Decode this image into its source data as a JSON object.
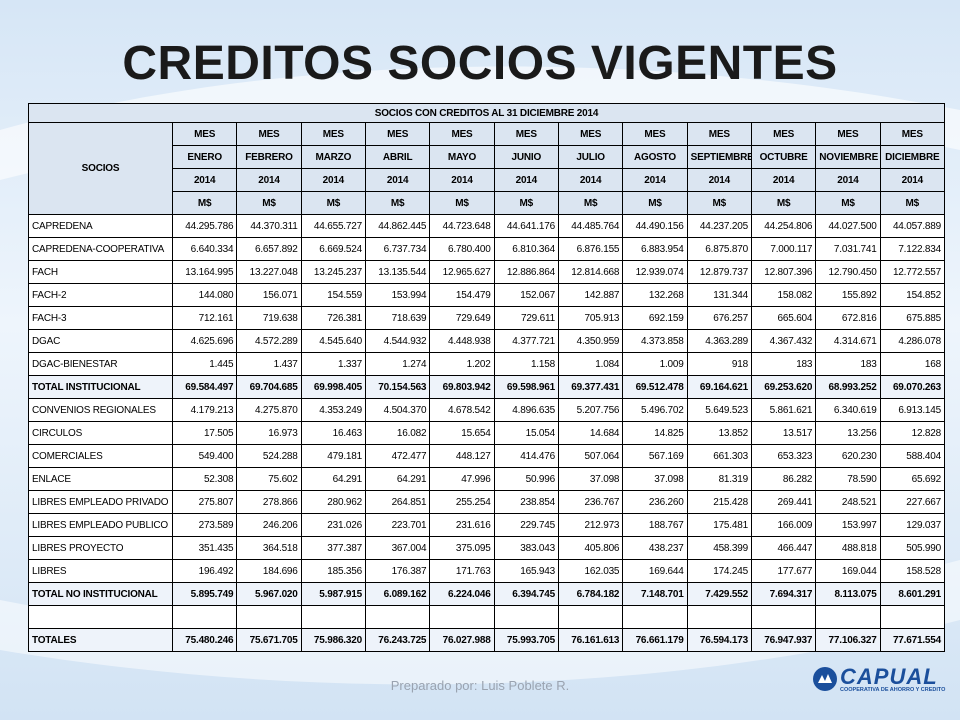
{
  "title": "CREDITOS SOCIOS VIGENTES",
  "table": {
    "caption": "SOCIOS CON CREDITOS AL 31 DICIEMBRE 2014",
    "row_header": "SOCIOS",
    "columns": [
      [
        "MES",
        "ENERO",
        "2014",
        "M$"
      ],
      [
        "MES",
        "FEBRERO",
        "2014",
        "M$"
      ],
      [
        "MES",
        "MARZO",
        "2014",
        "M$"
      ],
      [
        "MES",
        "ABRIL",
        "2014",
        "M$"
      ],
      [
        "MES",
        "MAYO",
        "2014",
        "M$"
      ],
      [
        "MES",
        "JUNIO",
        "2014",
        "M$"
      ],
      [
        "MES",
        "JULIO",
        "2014",
        "M$"
      ],
      [
        "MES",
        "AGOSTO",
        "2014",
        "M$"
      ],
      [
        "MES",
        "SEPTIEMBRE",
        "2014",
        "M$"
      ],
      [
        "MES",
        "OCTUBRE",
        "2014",
        "M$"
      ],
      [
        "MES",
        "NOVIEMBRE",
        "2014",
        "M$"
      ],
      [
        "MES",
        "DICIEMBRE",
        "2014",
        "M$"
      ]
    ],
    "rows": [
      {
        "label": "CAPREDENA",
        "values": [
          "44.295.786",
          "44.370.311",
          "44.655.727",
          "44.862.445",
          "44.723.648",
          "44.641.176",
          "44.485.764",
          "44.490.156",
          "44.237.205",
          "44.254.806",
          "44.027.500",
          "44.057.889"
        ]
      },
      {
        "label": "CAPREDENA-COOPERATIVA",
        "values": [
          "6.640.334",
          "6.657.892",
          "6.669.524",
          "6.737.734",
          "6.780.400",
          "6.810.364",
          "6.876.155",
          "6.883.954",
          "6.875.870",
          "7.000.117",
          "7.031.741",
          "7.122.834"
        ]
      },
      {
        "label": "FACH",
        "values": [
          "13.164.995",
          "13.227.048",
          "13.245.237",
          "13.135.544",
          "12.965.627",
          "12.886.864",
          "12.814.668",
          "12.939.074",
          "12.879.737",
          "12.807.396",
          "12.790.450",
          "12.772.557"
        ]
      },
      {
        "label": "FACH-2",
        "values": [
          "144.080",
          "156.071",
          "154.559",
          "153.994",
          "154.479",
          "152.067",
          "142.887",
          "132.268",
          "131.344",
          "158.082",
          "155.892",
          "154.852"
        ]
      },
      {
        "label": "FACH-3",
        "values": [
          "712.161",
          "719.638",
          "726.381",
          "718.639",
          "729.649",
          "729.611",
          "705.913",
          "692.159",
          "676.257",
          "665.604",
          "672.816",
          "675.885"
        ]
      },
      {
        "label": "DGAC",
        "values": [
          "4.625.696",
          "4.572.289",
          "4.545.640",
          "4.544.932",
          "4.448.938",
          "4.377.721",
          "4.350.959",
          "4.373.858",
          "4.363.289",
          "4.367.432",
          "4.314.671",
          "4.286.078"
        ]
      },
      {
        "label": "DGAC-BIENESTAR",
        "values": [
          "1.445",
          "1.437",
          "1.337",
          "1.274",
          "1.202",
          "1.158",
          "1.084",
          "1.009",
          "918",
          "183",
          "183",
          "168"
        ]
      },
      {
        "label": "TOTAL INSTITUCIONAL",
        "total": true,
        "values": [
          "69.584.497",
          "69.704.685",
          "69.998.405",
          "70.154.563",
          "69.803.942",
          "69.598.961",
          "69.377.431",
          "69.512.478",
          "69.164.621",
          "69.253.620",
          "68.993.252",
          "69.070.263"
        ]
      },
      {
        "label": "CONVENIOS REGIONALES",
        "values": [
          "4.179.213",
          "4.275.870",
          "4.353.249",
          "4.504.370",
          "4.678.542",
          "4.896.635",
          "5.207.756",
          "5.496.702",
          "5.649.523",
          "5.861.621",
          "6.340.619",
          "6.913.145"
        ]
      },
      {
        "label": "CIRCULOS",
        "values": [
          "17.505",
          "16.973",
          "16.463",
          "16.082",
          "15.654",
          "15.054",
          "14.684",
          "14.825",
          "13.852",
          "13.517",
          "13.256",
          "12.828"
        ]
      },
      {
        "label": "COMERCIALES",
        "values": [
          "549.400",
          "524.288",
          "479.181",
          "472.477",
          "448.127",
          "414.476",
          "507.064",
          "567.169",
          "661.303",
          "653.323",
          "620.230",
          "588.404"
        ]
      },
      {
        "label": "ENLACE",
        "values": [
          "52.308",
          "75.602",
          "64.291",
          "64.291",
          "47.996",
          "50.996",
          "37.098",
          "37.098",
          "81.319",
          "86.282",
          "78.590",
          "65.692"
        ]
      },
      {
        "label": "LIBRES EMPLEADO PRIVADO",
        "values": [
          "275.807",
          "278.866",
          "280.962",
          "264.851",
          "255.254",
          "238.854",
          "236.767",
          "236.260",
          "215.428",
          "269.441",
          "248.521",
          "227.667"
        ]
      },
      {
        "label": "LIBRES EMPLEADO PUBLICO",
        "values": [
          "273.589",
          "246.206",
          "231.026",
          "223.701",
          "231.616",
          "229.745",
          "212.973",
          "188.767",
          "175.481",
          "166.009",
          "153.997",
          "129.037"
        ]
      },
      {
        "label": "LIBRES PROYECTO",
        "values": [
          "351.435",
          "364.518",
          "377.387",
          "367.004",
          "375.095",
          "383.043",
          "405.806",
          "438.237",
          "458.399",
          "466.447",
          "488.818",
          "505.990"
        ]
      },
      {
        "label": "LIBRES",
        "values": [
          "196.492",
          "184.696",
          "185.356",
          "176.387",
          "171.763",
          "165.943",
          "162.035",
          "169.644",
          "174.245",
          "177.677",
          "169.044",
          "158.528"
        ]
      },
      {
        "label": "TOTAL NO INSTITUCIONAL",
        "total": true,
        "values": [
          "5.895.749",
          "5.967.020",
          "5.987.915",
          "6.089.162",
          "6.224.046",
          "6.394.745",
          "6.784.182",
          "7.148.701",
          "7.429.552",
          "7.694.317",
          "8.113.075",
          "8.601.291"
        ]
      }
    ],
    "grand_total": {
      "label": "TOTALES",
      "values": [
        "75.480.246",
        "75.671.705",
        "75.986.320",
        "76.243.725",
        "76.027.988",
        "75.993.705",
        "76.161.613",
        "76.661.179",
        "76.594.173",
        "76.947.937",
        "77.106.327",
        "77.671.554"
      ]
    }
  },
  "footer": "Preparado por: Luis Poblete R.",
  "logo": {
    "name": "CAPUAL",
    "tagline": "COOPERATIVA DE AHORRO Y CREDITO"
  }
}
